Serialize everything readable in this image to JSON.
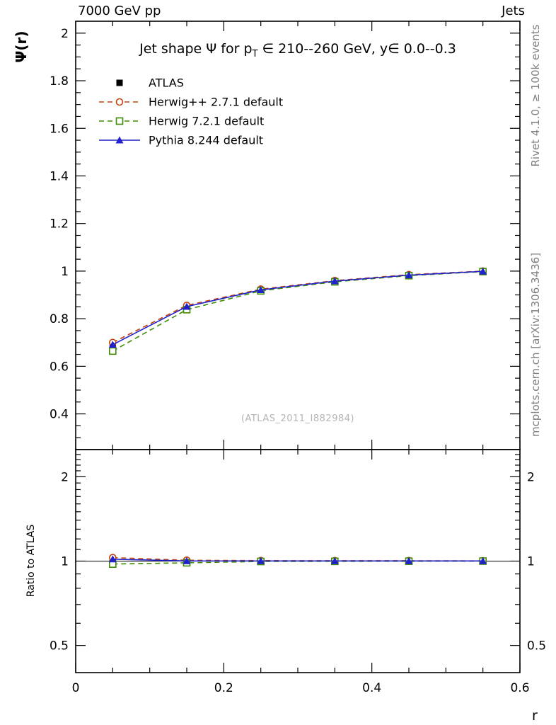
{
  "header": {
    "left": "7000 GeV pp",
    "right": "Jets"
  },
  "title": {
    "pre": "Jet shape Ψ for p",
    "sub": "T",
    "post": " ∈ 210--260 GeV, y∈ 0.0--0.3"
  },
  "side_notes": {
    "rivet": "Rivet 4.1.0, ≥ 100k events",
    "mcplots": "mcplots.cern.ch [arXiv:1306.3436]"
  },
  "watermark": "(ATLAS_2011_I882984)",
  "chart_data": {
    "type": "line",
    "title": "Jet shape Ψ for pT ∈ 210--260 GeV, y∈ 0.0--0.3",
    "xlabel": "r",
    "ylabel": "Ψ(r)",
    "xlim": [
      0,
      0.6
    ],
    "xticks": [
      0,
      0.2,
      0.4,
      0.6
    ],
    "ylim": [
      0.25,
      2.05
    ],
    "yticks": [
      0.4,
      0.6,
      0.8,
      1,
      1.2,
      1.4,
      1.6,
      1.8,
      2
    ],
    "grid": false,
    "legend_position": "top-left-inside",
    "x": [
      0.05,
      0.15,
      0.25,
      0.35,
      0.45,
      0.55
    ],
    "series": [
      {
        "name": "ATLAS",
        "color": "#000000",
        "marker": "filled-square",
        "line": "none",
        "values": [
          0.68,
          0.85,
          0.92,
          0.957,
          0.982,
          0.998
        ]
      },
      {
        "name": "Herwig++ 2.7.1 default",
        "color": "#c1440e",
        "marker": "open-circle",
        "line": "dashed",
        "values": [
          0.7,
          0.856,
          0.924,
          0.96,
          0.985,
          1.0
        ]
      },
      {
        "name": "Herwig 7.2.1 default",
        "color": "#3e8c00",
        "marker": "open-square",
        "line": "dashed",
        "values": [
          0.664,
          0.838,
          0.917,
          0.955,
          0.981,
          0.998
        ]
      },
      {
        "name": "Pythia 8.244 default",
        "color": "#2222cc",
        "marker": "filled-triangle",
        "line": "solid",
        "values": [
          0.691,
          0.851,
          0.921,
          0.958,
          0.983,
          0.999
        ]
      }
    ],
    "ratio": {
      "label": "Ratio to ATLAS",
      "yscale": "log",
      "ylim": [
        0.4,
        2.5
      ],
      "yticks": [
        0.5,
        1,
        2
      ],
      "series": [
        {
          "name": "ATLAS",
          "values": [
            1,
            1,
            1,
            1,
            1,
            1
          ]
        },
        {
          "name": "Herwig++ 2.7.1 default",
          "values": [
            1.029,
            1.007,
            1.004,
            1.003,
            1.003,
            1.002
          ]
        },
        {
          "name": "Herwig 7.2.1 default",
          "values": [
            0.976,
            0.986,
            0.997,
            0.998,
            0.999,
            1.0
          ]
        },
        {
          "name": "Pythia 8.244 default",
          "values": [
            1.016,
            1.001,
            1.001,
            1.001,
            1.001,
            1.001
          ]
        }
      ]
    }
  }
}
